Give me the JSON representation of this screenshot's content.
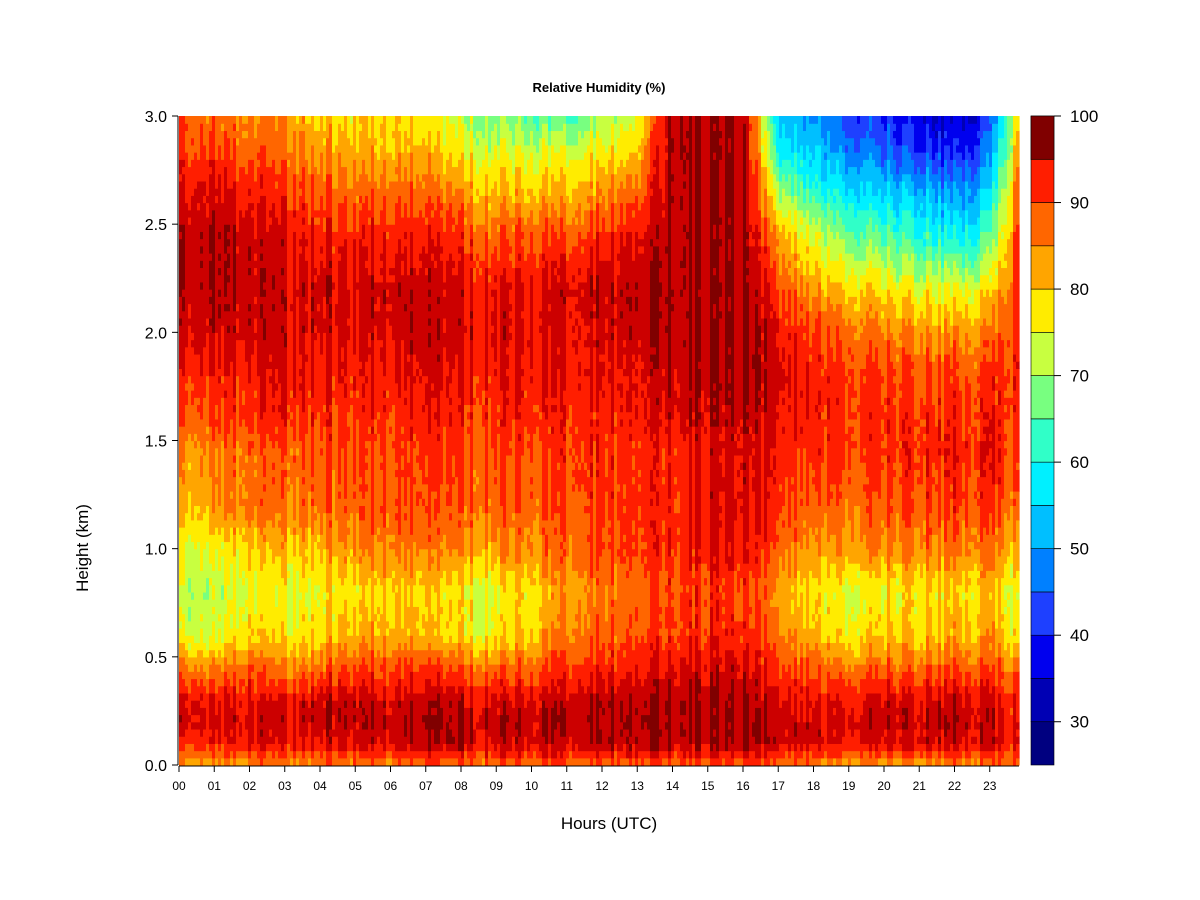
{
  "chart_data": {
    "type": "heatmap",
    "title": "Relative Humidity (%)",
    "xlabel": "Hours (UTC)",
    "ylabel": "Height (km)",
    "xlim": [
      0,
      23.83
    ],
    "ylim": [
      0,
      3
    ],
    "x_ticks": [
      "00",
      "01",
      "02",
      "03",
      "04",
      "05",
      "06",
      "07",
      "08",
      "09",
      "10",
      "11",
      "12",
      "13",
      "14",
      "15",
      "16",
      "17",
      "18",
      "19",
      "20",
      "21",
      "22",
      "23"
    ],
    "y_ticks": [
      "0.0",
      "0.5",
      "1.0",
      "1.5",
      "2.0",
      "2.5",
      "3.0"
    ],
    "heights_km": [
      0.0,
      0.1,
      0.2,
      0.3,
      0.45,
      0.6,
      0.8,
      1.0,
      1.2,
      1.45,
      1.6,
      1.8,
      2.0,
      2.2,
      2.45,
      2.7,
      2.85,
      3.0
    ],
    "hours": [
      0,
      1,
      2,
      3,
      4,
      5,
      6,
      7,
      8,
      9,
      10,
      11,
      12,
      13,
      14,
      15,
      16,
      17,
      18,
      19,
      20,
      21,
      22,
      23,
      23.8
    ],
    "rh_profiles": [
      [
        83,
        92,
        98,
        97,
        88,
        76,
        72,
        76,
        82,
        85,
        90,
        93,
        98,
        100,
        100,
        95,
        92,
        90
      ],
      [
        84,
        93,
        97,
        95,
        86,
        74,
        72,
        76,
        84,
        86,
        91,
        94,
        98,
        100,
        100,
        96,
        91,
        88
      ],
      [
        85,
        96,
        98,
        96,
        90,
        80,
        76,
        80,
        88,
        88,
        92,
        94,
        98,
        99,
        98,
        93,
        89,
        86
      ],
      [
        85,
        94,
        97,
        94,
        85,
        76,
        74,
        80,
        86,
        88,
        92,
        95,
        96,
        97,
        95,
        90,
        86,
        84
      ],
      [
        86,
        96,
        99,
        98,
        88,
        80,
        77,
        82,
        88,
        90,
        92,
        94,
        97,
        98,
        94,
        88,
        84,
        80
      ],
      [
        86,
        97,
        99,
        98,
        90,
        82,
        78,
        85,
        89,
        90,
        92,
        94,
        96,
        97,
        93,
        86,
        82,
        78
      ],
      [
        86,
        98,
        99,
        97,
        90,
        83,
        80,
        86,
        90,
        90,
        92,
        94,
        97,
        98,
        94,
        86,
        82,
        79
      ],
      [
        87,
        98,
        100,
        98,
        90,
        80,
        78,
        85,
        89,
        90,
        93,
        95,
        97,
        97,
        93,
        85,
        80,
        76
      ],
      [
        87,
        98,
        99,
        97,
        88,
        78,
        76,
        84,
        89,
        90,
        92,
        94,
        96,
        96,
        91,
        82,
        76,
        72
      ],
      [
        87,
        97,
        99,
        96,
        87,
        77,
        74,
        84,
        88,
        90,
        92,
        94,
        96,
        95,
        88,
        79,
        74,
        68
      ],
      [
        88,
        98,
        99,
        97,
        89,
        81,
        80,
        86,
        89,
        91,
        93,
        95,
        96,
        96,
        90,
        80,
        74,
        66
      ],
      [
        88,
        98,
        100,
        98,
        92,
        86,
        84,
        88,
        90,
        92,
        93,
        95,
        96,
        97,
        90,
        80,
        74,
        64
      ],
      [
        88,
        99,
        100,
        99,
        93,
        88,
        86,
        90,
        91,
        92,
        93,
        95,
        97,
        98,
        92,
        82,
        76,
        70
      ],
      [
        88,
        99,
        100,
        99,
        94,
        90,
        87,
        91,
        92,
        92,
        94,
        95,
        98,
        99,
        95,
        86,
        80,
        74
      ],
      [
        88,
        99,
        100,
        100,
        96,
        91,
        90,
        92,
        92,
        93,
        96,
        98,
        100,
        100,
        100,
        100,
        100,
        100
      ],
      [
        89,
        100,
        100,
        100,
        97,
        93,
        92,
        95,
        96,
        96,
        98,
        100,
        100,
        100,
        100,
        100,
        100,
        100
      ],
      [
        89,
        100,
        100,
        99,
        96,
        92,
        90,
        94,
        96,
        96,
        98,
        100,
        100,
        100,
        100,
        100,
        100,
        100
      ],
      [
        88,
        99,
        99,
        97,
        92,
        88,
        84,
        90,
        93,
        95,
        96,
        98,
        96,
        92,
        84,
        70,
        60,
        56
      ],
      [
        86,
        97,
        98,
        96,
        89,
        82,
        78,
        84,
        89,
        92,
        94,
        94,
        91,
        84,
        74,
        60,
        54,
        50
      ],
      [
        84,
        95,
        97,
        95,
        87,
        78,
        75,
        84,
        88,
        92,
        92,
        92,
        88,
        80,
        68,
        55,
        48,
        44
      ],
      [
        83,
        96,
        98,
        96,
        88,
        80,
        76,
        85,
        89,
        92,
        92,
        91,
        86,
        78,
        64,
        52,
        44,
        40
      ],
      [
        84,
        97,
        98,
        96,
        88,
        80,
        78,
        86,
        90,
        93,
        92,
        90,
        85,
        76,
        62,
        50,
        42,
        36
      ],
      [
        85,
        97,
        99,
        97,
        89,
        82,
        78,
        86,
        91,
        93,
        92,
        90,
        84,
        74,
        58,
        46,
        38,
        34
      ],
      [
        86,
        97,
        98,
        96,
        89,
        83,
        80,
        87,
        91,
        94,
        93,
        91,
        86,
        77,
        64,
        52,
        46,
        42
      ],
      [
        88,
        92,
        94,
        92,
        86,
        76,
        74,
        80,
        87,
        90,
        91,
        92,
        92,
        92,
        90,
        86,
        82,
        78
      ]
    ],
    "colorbar": {
      "ticks": [
        "100",
        "90",
        "80",
        "70",
        "60",
        "50",
        "40",
        "30"
      ],
      "range": [
        25,
        100
      ],
      "levels": [
        25,
        30,
        35,
        40,
        45,
        50,
        55,
        60,
        65,
        70,
        75,
        80,
        85,
        90,
        95,
        100
      ],
      "colors": [
        "#000080",
        "#0000b4",
        "#0000ee",
        "#1e40ff",
        "#0080ff",
        "#00bfff",
        "#00f0ff",
        "#30ffc8",
        "#78ff80",
        "#c8ff40",
        "#ffec00",
        "#ffa500",
        "#ff6600",
        "#ff1e00",
        "#cc0000",
        "#800000"
      ]
    }
  }
}
